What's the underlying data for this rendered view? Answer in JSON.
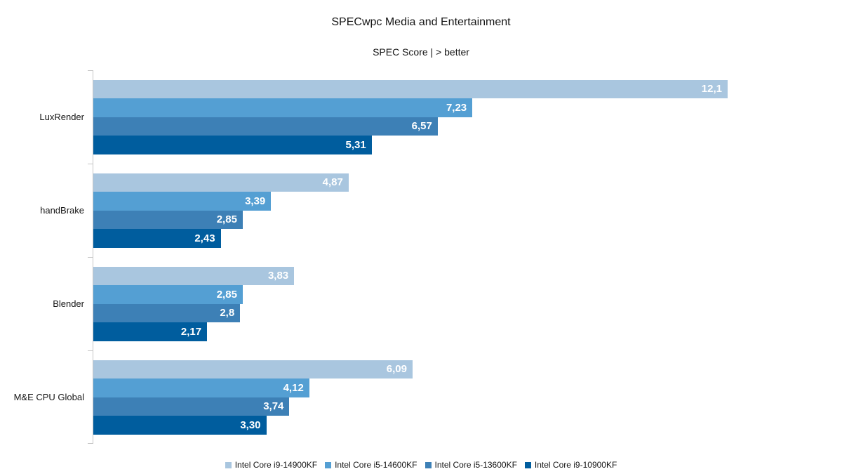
{
  "title": "SPECwpc Media and Entertainment",
  "subtitle": "SPEC Score | > better",
  "chart_data": {
    "type": "bar",
    "orientation": "horizontal",
    "title": "SPECwpc Media and Entertainment",
    "subtitle": "SPEC Score | > better",
    "xlabel": "SPEC Score",
    "ylabel": "",
    "grid": false,
    "legend_position": "bottom",
    "value_axis_max": 12.1,
    "categories": [
      "LuxRender",
      "handBrake",
      "Blender",
      "M&E CPU Global"
    ],
    "series": [
      {
        "name": "Intel Core i9-14900KF",
        "color": "#a9c6df",
        "values": [
          12.1,
          4.87,
          3.83,
          6.09
        ],
        "value_labels": [
          "12,1",
          "4,87",
          "3,83",
          "6,09"
        ]
      },
      {
        "name": "Intel Core i5-14600KF",
        "color": "#549fd3",
        "values": [
          7.23,
          3.39,
          2.85,
          4.12
        ],
        "value_labels": [
          "7,23",
          "3,39",
          "2,85",
          "4,12"
        ]
      },
      {
        "name": "Intel Core i5-13600KF",
        "color": "#3d80b6",
        "values": [
          6.57,
          2.85,
          2.8,
          3.74
        ],
        "value_labels": [
          "6,57",
          "2,85",
          "2,8",
          "3,74"
        ]
      },
      {
        "name": "Intel Core i9-10900KF",
        "color": "#005d9e",
        "values": [
          5.31,
          2.43,
          2.17,
          3.3
        ],
        "value_labels": [
          "5,31",
          "2,43",
          "2,17",
          "3,30"
        ]
      }
    ],
    "value_label_color": "#ffffff",
    "axis_color": "#c6c6c6"
  }
}
